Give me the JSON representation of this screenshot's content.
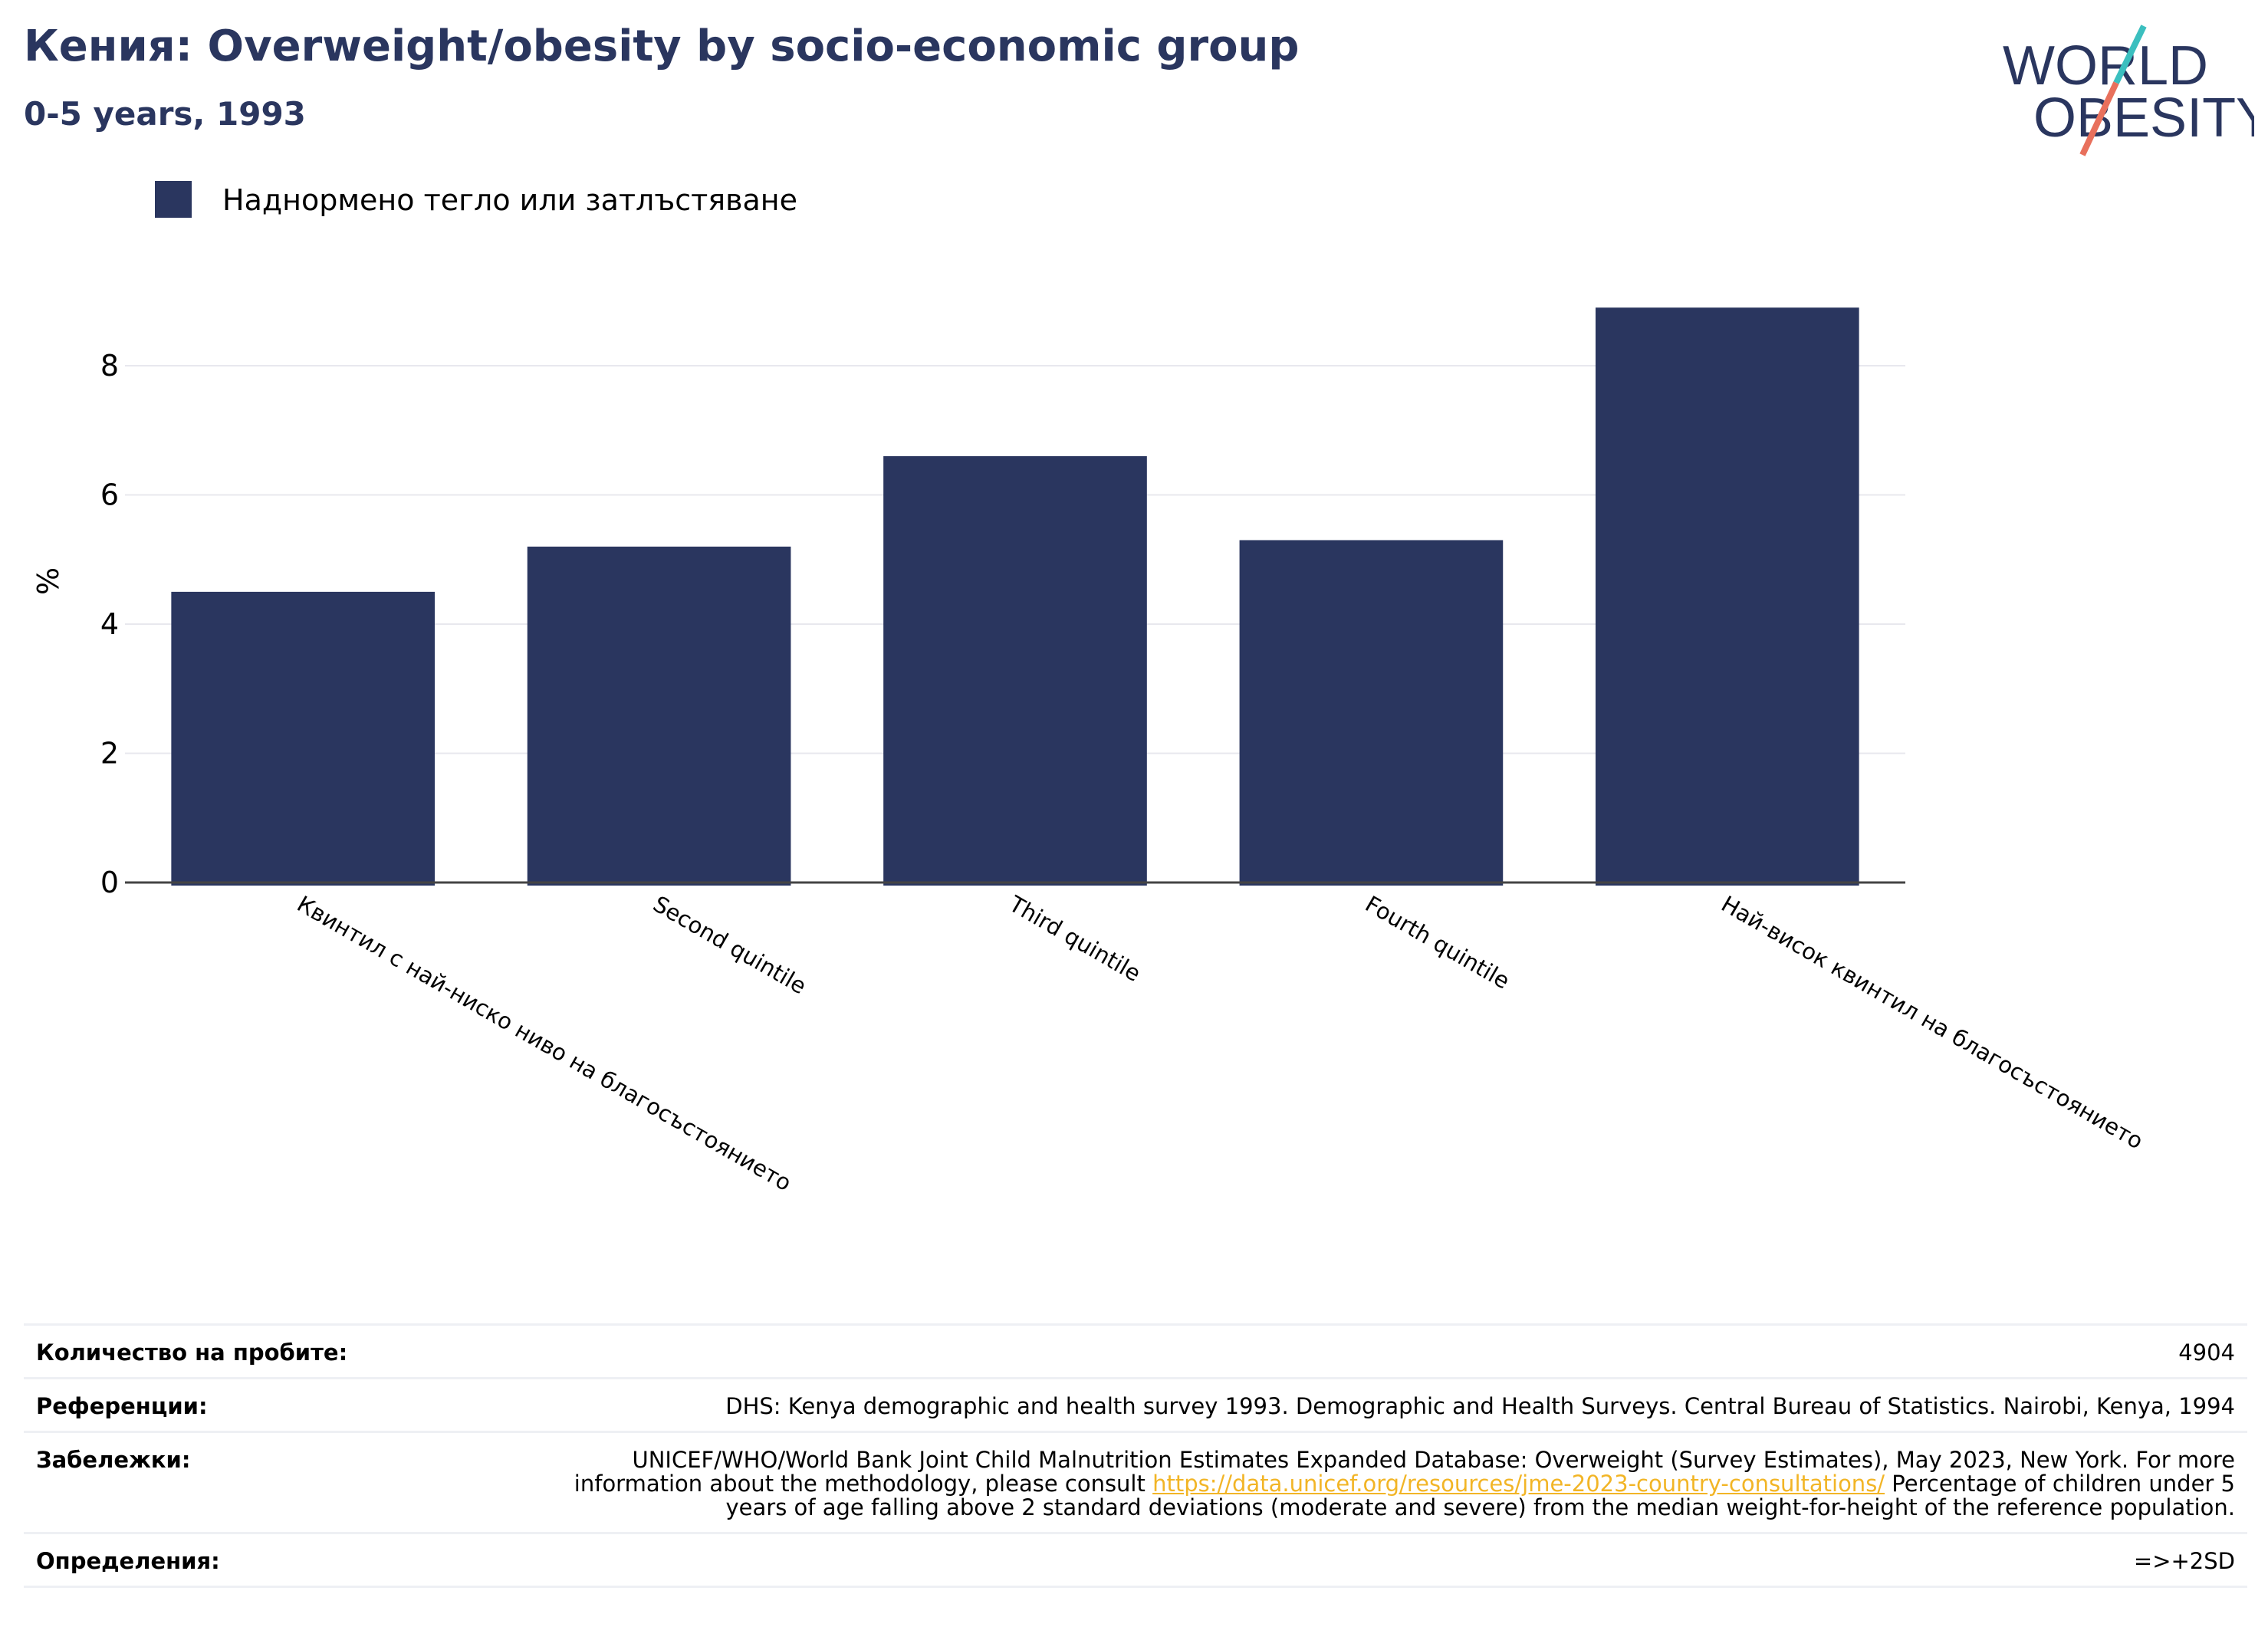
{
  "header": {
    "title": "Кения: Overweight/obesity by socio-economic group",
    "subtitle": "0-5 years, 1993"
  },
  "logo": {
    "line1": "WORLD",
    "line2": "OBESITY"
  },
  "colors": {
    "bar": "#2a365f",
    "title": "#2a365f",
    "grid": "#e8e8ee",
    "axis": "#444444",
    "link": "#f2b526",
    "logo_teal": "#3bbfbf",
    "logo_red": "#e8705c"
  },
  "chart_data": {
    "type": "bar",
    "title": "Кения: Overweight/obesity by socio-economic group",
    "subtitle": "0-5 years, 1993",
    "categories": [
      "Квинтил с най-ниско ниво на благосъстоянието",
      "Second quintile",
      "Third quintile",
      "Fourth quintile",
      "Най-висок квинтил на благосъстоянието"
    ],
    "series": [
      {
        "name": "Наднормено тегло или затлъстяване",
        "values": [
          4.5,
          5.2,
          6.6,
          5.3,
          8.9
        ]
      }
    ],
    "ylabel": "%",
    "xlabel": "",
    "ylim": [
      0,
      9.2
    ],
    "yticks": [
      0,
      2,
      4,
      6,
      8
    ],
    "grid": true,
    "legend": "top-left"
  },
  "meta": {
    "sample_label": "Количество на пробите:",
    "sample_value": "4904",
    "refs_label": "Референции:",
    "refs_value": "DHS: Kenya demographic and health survey 1993. Demographic and Health Surveys. Central Bureau of Statistics. Nairobi, Kenya, 1994",
    "notes_label": "Забележки:",
    "notes_before": "UNICEF/WHO/World Bank Joint Child Malnutrition Estimates Expanded Database: Overweight (Survey Estimates), May 2023, New York. For more information about the methodology, please consult",
    "notes_link": "https://data.unicef.org/resources/jme-2023-country-consultations/",
    "notes_after": "Percentage of children under 5 years of age falling above 2 standard deviations (moderate and severe) from the median weight-for-height of the reference population.",
    "defs_label": "Определения:",
    "defs_value": "=>+2SD"
  }
}
